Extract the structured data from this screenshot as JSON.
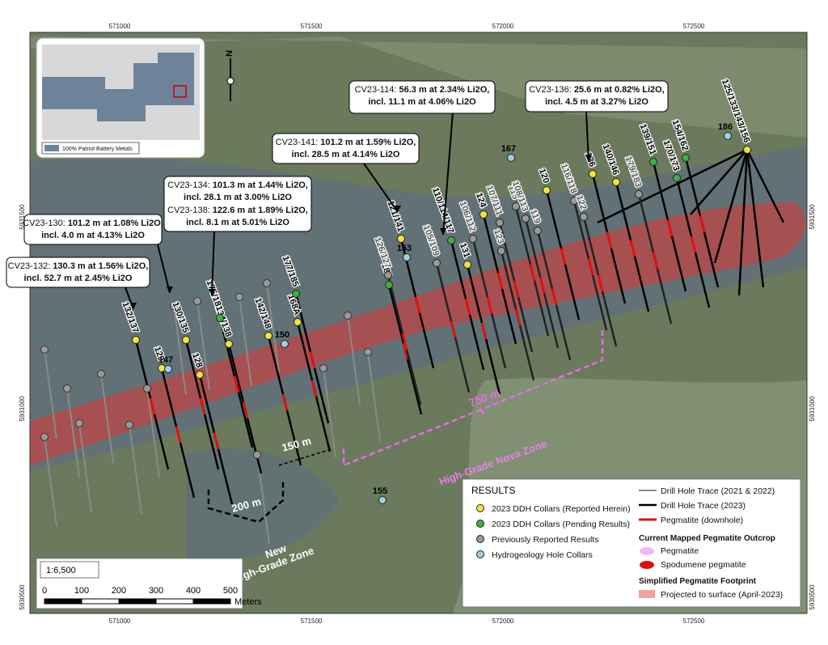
{
  "coordinates": {
    "top": [
      "571000",
      "571500",
      "572000",
      "572500"
    ],
    "left": [
      "5931500",
      "5931000",
      "5930500"
    ]
  },
  "callouts": [
    {
      "id": "CV23-114:",
      "text": " 56.3 m at 2.34% Li2O,",
      "incl": "incl. 11.1 m at 4.06% Li2O"
    },
    {
      "id": "CV23-136:",
      "text": " 25.6 m at 0.82% Li2O,",
      "incl": "incl. 4.5 m at 3.27% Li2O"
    },
    {
      "id": "CV23-141:",
      "text": " 101.2 m at 1.59% Li2O,",
      "incl": "incl. 28.5 m at 4.14% Li2O"
    },
    {
      "id": "CV23-134:",
      "text": " 101.3 m at 1.44% Li2O,",
      "incl": "incl. 28.1 m at 3.00% Li2O"
    },
    {
      "id": "CV23-138:",
      "text": " 122.6 m at 1.89% Li2O,",
      "incl": "incl. 8.1 m at 5.01% Li2O"
    },
    {
      "id": "CV23-130:",
      "text": " 101.2 m at 1.08% Li2O,",
      "incl": "incl. 4.0 m at 4.13% Li2O"
    },
    {
      "id": "CV23-132:",
      "text": " 130.3 m at 1.56% Li2O,",
      "incl": "incl. 52.7 m at 2.45% Li2O"
    }
  ],
  "holes": {
    "reported": [
      "132/137",
      "129",
      "130/135",
      "128",
      "134/138",
      "142/148",
      "168A",
      "121/141",
      "131",
      "124",
      "120",
      "136",
      "140/146",
      "125/133/143/156"
    ],
    "pending": [
      "175/181",
      "177/185",
      "189",
      "110/114/117",
      "139/151",
      "170/173",
      "154/162"
    ],
    "previous": [
      "126/127",
      "105/109",
      "106/112",
      "123",
      "107/111",
      "115",
      "119",
      "108/113",
      "116/118",
      "122",
      "179/183"
    ],
    "hydro": [
      "147",
      "150",
      "153",
      "167",
      "186",
      "155"
    ]
  },
  "zones": {
    "nova_length": "750 m",
    "nova_name": "High-Grade Nova Zone",
    "gap": "150 m",
    "new_length": "200 m",
    "new_name_1": "New",
    "new_name_2": "High-Grade Zone"
  },
  "north": "N",
  "inset_legend": "100% Patriot Battery Metals",
  "scale": {
    "ratio": "1:6,500",
    "ticks": [
      "0",
      "100",
      "200",
      "300",
      "400",
      "500"
    ],
    "unit": "Meters"
  },
  "legend": {
    "title": "RESULTS",
    "left": [
      "2023 DDH Collars (Reported Herein)",
      "2023 DDH Collars (Pending Results)",
      "Previously Reported Results",
      "Hydrogeology Hole Collars"
    ],
    "right": [
      "Drill Hole Trace (2021 & 2022)",
      "Drill Hole Trace (2023)",
      "Pegmatite (downhole)"
    ],
    "outcrop_title": "Current Mapped Pegmatite Outcrop",
    "outcrop": [
      "Pegmatite",
      "Spodumene pegmatite"
    ],
    "footprint_title": "Simplified Pegmatite Footprint",
    "footprint": [
      "Projected to surface (April-2023)"
    ]
  }
}
